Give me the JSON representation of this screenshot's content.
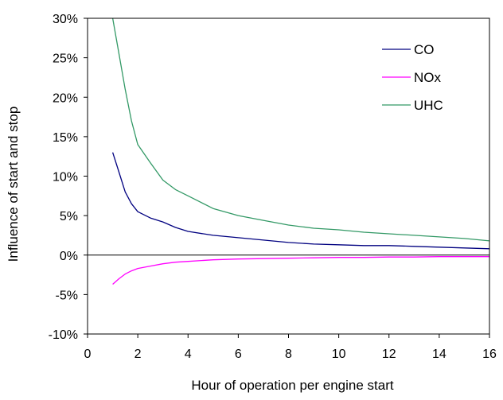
{
  "chart_data": {
    "type": "line",
    "title": "",
    "xlabel": "Hour of operation per engine start",
    "ylabel": "Influence of start and stop",
    "xlim": [
      0,
      16
    ],
    "ylim": [
      -10,
      30
    ],
    "x_ticks": [
      0,
      2,
      4,
      6,
      8,
      10,
      12,
      14,
      16
    ],
    "x_tick_labels": [
      "0",
      "2",
      "4",
      "6",
      "8",
      "10",
      "12",
      "14",
      "16"
    ],
    "y_ticks": [
      -10,
      -5,
      0,
      5,
      10,
      15,
      20,
      25,
      30
    ],
    "y_tick_labels": [
      "-10%",
      "-5%",
      "0%",
      "5%",
      "10%",
      "15%",
      "20%",
      "25%",
      "30%"
    ],
    "grid": false,
    "legend_position": "top-right",
    "series": [
      {
        "name": "CO",
        "color": "#000080",
        "x": [
          1,
          1.25,
          1.5,
          1.75,
          2,
          2.5,
          3,
          3.5,
          4,
          5,
          6,
          7,
          8,
          9,
          10,
          11,
          12,
          13,
          14,
          15,
          16
        ],
        "y": [
          13.0,
          10.5,
          8.0,
          6.5,
          5.5,
          4.7,
          4.2,
          3.5,
          3.0,
          2.5,
          2.2,
          1.9,
          1.6,
          1.4,
          1.3,
          1.2,
          1.2,
          1.1,
          1.0,
          0.9,
          0.8
        ]
      },
      {
        "name": "NOx",
        "color": "#FF00FF",
        "x": [
          1,
          1.25,
          1.5,
          1.75,
          2,
          2.5,
          3,
          3.5,
          4,
          5,
          6,
          7,
          8,
          9,
          10,
          11,
          12,
          13,
          14,
          15,
          16
        ],
        "y": [
          -3.7,
          -3.0,
          -2.4,
          -2.0,
          -1.7,
          -1.4,
          -1.1,
          -0.9,
          -0.8,
          -0.6,
          -0.5,
          -0.45,
          -0.4,
          -0.35,
          -0.3,
          -0.3,
          -0.25,
          -0.25,
          -0.2,
          -0.2,
          -0.2
        ]
      },
      {
        "name": "UHC",
        "color": "#339966",
        "x": [
          1,
          1.25,
          1.5,
          1.75,
          2,
          2.5,
          3,
          3.5,
          4,
          5,
          6,
          7,
          8,
          9,
          10,
          11,
          12,
          13,
          14,
          15,
          16
        ],
        "y": [
          30.0,
          25.5,
          21.0,
          17.0,
          14.0,
          11.7,
          9.5,
          8.3,
          7.5,
          5.9,
          5.0,
          4.4,
          3.8,
          3.4,
          3.2,
          2.9,
          2.7,
          2.5,
          2.3,
          2.1,
          1.8
        ]
      }
    ]
  }
}
